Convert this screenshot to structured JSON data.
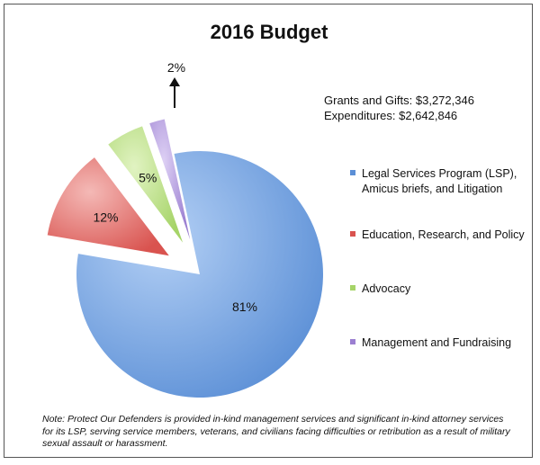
{
  "title": "2016 Budget",
  "totals": {
    "grants": "Grants and Gifts: $3,272,346",
    "expenditures": "Expenditures: $2,642,846"
  },
  "legend": [
    {
      "label": "Legal Services Program (LSP), Amicus briefs, and Litigation",
      "color": "#5b8fd6"
    },
    {
      "label": "Education, Research, and Policy",
      "color": "#d9534f"
    },
    {
      "label": "Advocacy",
      "color": "#a6d468"
    },
    {
      "label": "Management and Fundraising",
      "color": "#9b7fd1"
    }
  ],
  "note": "Note: Protect Our Defenders is provided in-kind management services and significant in-kind attorney services for its LSP, serving service members, veterans, and civilians facing difficulties or retribution as a result of military sexual assault or harassment.",
  "chart_data": {
    "type": "pie",
    "title": "2016 Budget",
    "categories": [
      "Legal Services Program (LSP), Amicus briefs, and Litigation",
      "Education, Research, and Policy",
      "Advocacy",
      "Management and Fundraising"
    ],
    "values": [
      81,
      12,
      5,
      2
    ],
    "labels": [
      "81%",
      "12%",
      "5%",
      "2%"
    ],
    "exploded": [
      false,
      true,
      true,
      true
    ],
    "colors": [
      "#5b8fd6",
      "#d9534f",
      "#a6d468",
      "#9b7fd1"
    ],
    "legend_position": "right"
  }
}
